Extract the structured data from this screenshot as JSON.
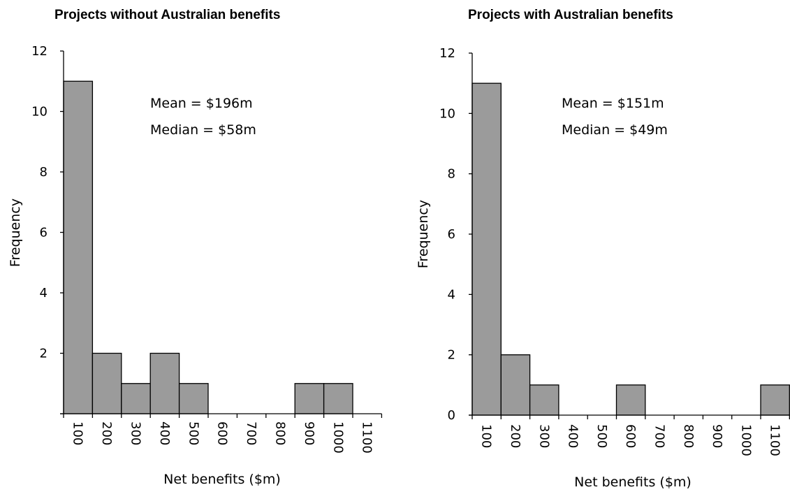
{
  "chart_data": [
    {
      "type": "bar",
      "title": "Projects without Australian benefits",
      "xlabel": "Net benefits ($m)",
      "ylabel": "Frequency",
      "ylim": [
        0,
        12
      ],
      "yticks": [
        "",
        "2",
        "4",
        "6",
        "8",
        "10",
        "12"
      ],
      "categories": [
        "100",
        "200",
        "300",
        "400",
        "500",
        "600",
        "700",
        "800",
        "900",
        "1000",
        "1100"
      ],
      "values": [
        11,
        2,
        1,
        2,
        1,
        0,
        0,
        0,
        1,
        1,
        0
      ],
      "bar_color": "#9b9b9b",
      "annotations": [
        "Mean = $196m",
        "Median = $58m"
      ],
      "grid": false
    },
    {
      "type": "bar",
      "title": "Projects with Australian benefits",
      "xlabel": "Net benefits ($m)",
      "ylabel": "Frequency",
      "ylim": [
        0,
        12
      ],
      "yticks": [
        "0",
        "2",
        "4",
        "6",
        "8",
        "10",
        "12"
      ],
      "categories": [
        "100",
        "200",
        "300",
        "400",
        "500",
        "600",
        "700",
        "800",
        "900",
        "1000",
        "1100"
      ],
      "values": [
        11,
        2,
        1,
        0,
        0,
        1,
        0,
        0,
        0,
        0,
        1
      ],
      "bar_color": "#9b9b9b",
      "annotations": [
        "Mean = $151m",
        "Median = $49m"
      ],
      "grid": false
    }
  ]
}
